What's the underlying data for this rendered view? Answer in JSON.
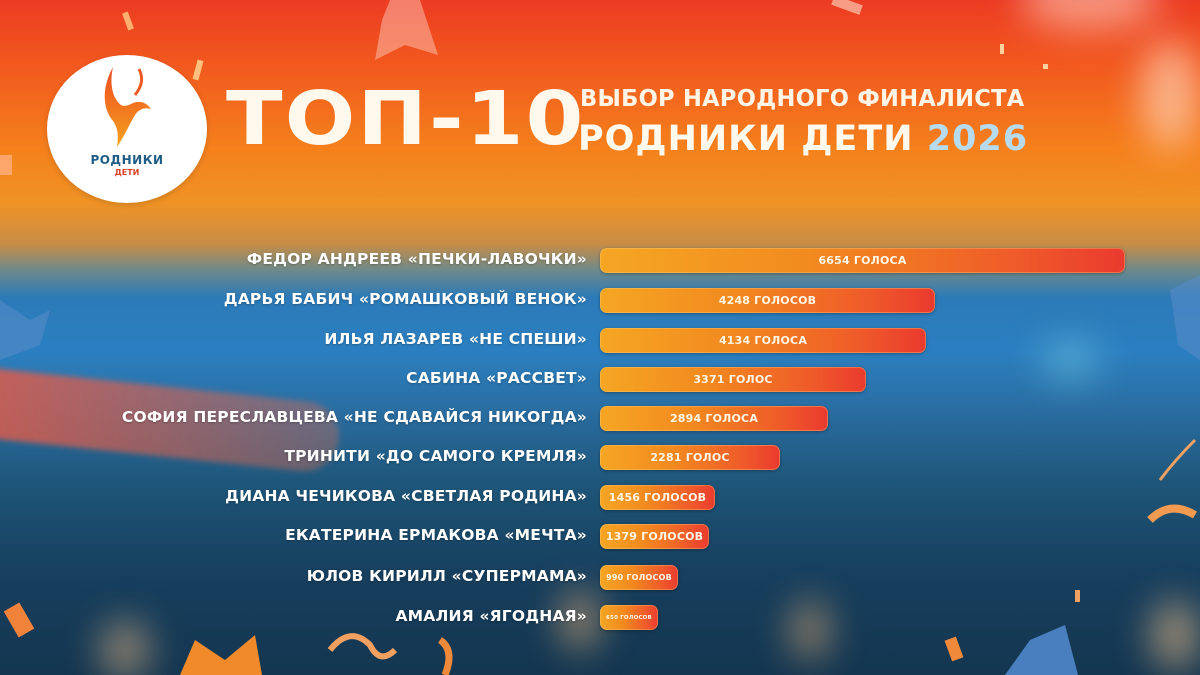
{
  "header": {
    "logo": {
      "name": "РОДНИКИ",
      "sub": "ДЕТИ"
    },
    "title": "ТОП-10",
    "subtitle_line1": "ВЫБОР НАРОДНОГО ФИНАЛИСТА",
    "subtitle_line2": "РОДНИКИ ДЕТИ",
    "year": "2026"
  },
  "colors": {
    "bar_start": "#f5a623",
    "bar_end": "#ea3a2e",
    "year_text": "#b6dbee",
    "logo_blue": "#1f5d86",
    "logo_red": "#d8442a"
  },
  "rows": [
    {
      "label": "ФЕДОР АНДРЕЕВ «ПЕЧКИ-ЛАВОЧКИ»",
      "value_text": "6654 ГОЛОСА"
    },
    {
      "label": "ДАРЬЯ БАБИЧ «РОМАШКОВЫЙ ВЕНОК»",
      "value_text": "4248 ГОЛОСОВ"
    },
    {
      "label": "ИЛЬЯ ЛАЗАРЕВ «НЕ СПЕШИ»",
      "value_text": "4134 ГОЛОСА"
    },
    {
      "label": "САБИНА «РАССВЕТ»",
      "value_text": "3371 ГОЛОС"
    },
    {
      "label": "СОФИЯ ПЕРЕСЛАВЦЕВА «НЕ СДАВАЙСЯ НИКОГДА»",
      "value_text": "2894 ГОЛОСА"
    },
    {
      "label": "ТРИНИТИ «ДО САМОГО КРЕМЛЯ»",
      "value_text": "2281 ГОЛОС"
    },
    {
      "label": "ДИАНА ЧЕЧИКОВА «СВЕТЛАЯ РОДИНА»",
      "value_text": "1456 ГОЛОСОВ"
    },
    {
      "label": "ЕКАТЕРИНА ЕРМАКОВА «МЕЧТА»",
      "value_text": "1379 ГОЛОСОВ"
    },
    {
      "label": "ЮЛОВ КИРИЛЛ «СУПЕРМАМА»",
      "value_text": "990 ГОЛОСОВ"
    },
    {
      "label": "АМАЛИЯ «ЯГОДНАЯ»",
      "value_text": "650 ГОЛОСОВ"
    }
  ],
  "chart_data": {
    "type": "bar",
    "orientation": "horizontal",
    "title": "ТОП-10 ВЫБОР НАРОДНОГО ФИНАЛИСТА РОДНИКИ ДЕТИ 2026",
    "xlabel": "",
    "ylabel": "",
    "categories": [
      "ФЕДОР АНДРЕЕВ «ПЕЧКИ-ЛАВОЧКИ»",
      "ДАРЬЯ БАБИЧ «РОМАШКОВЫЙ ВЕНОК»",
      "ИЛЬЯ ЛАЗАРЕВ «НЕ СПЕШИ»",
      "САБИНА «РАССВЕТ»",
      "СОФИЯ ПЕРЕСЛАВЦЕВА «НЕ СДАВАЙСЯ НИКОГДА»",
      "ТРИНИТИ «ДО САМОГО КРЕМЛЯ»",
      "ДИАНА ЧЕЧИКОВА «СВЕТЛАЯ РОДИНА»",
      "ЕКАТЕРИНА ЕРМАКОВА «МЕЧТА»",
      "ЮЛОВ КИРИЛЛ «СУПЕРМАМА»",
      "АМАЛИЯ «ЯГОДНАЯ»"
    ],
    "values": [
      6654,
      4248,
      4134,
      3371,
      2894,
      2281,
      1456,
      1379,
      990,
      650
    ],
    "value_unit": "голосов",
    "data_labels": true,
    "grid": false,
    "legend": "none",
    "xlim": [
      0,
      6654
    ]
  }
}
